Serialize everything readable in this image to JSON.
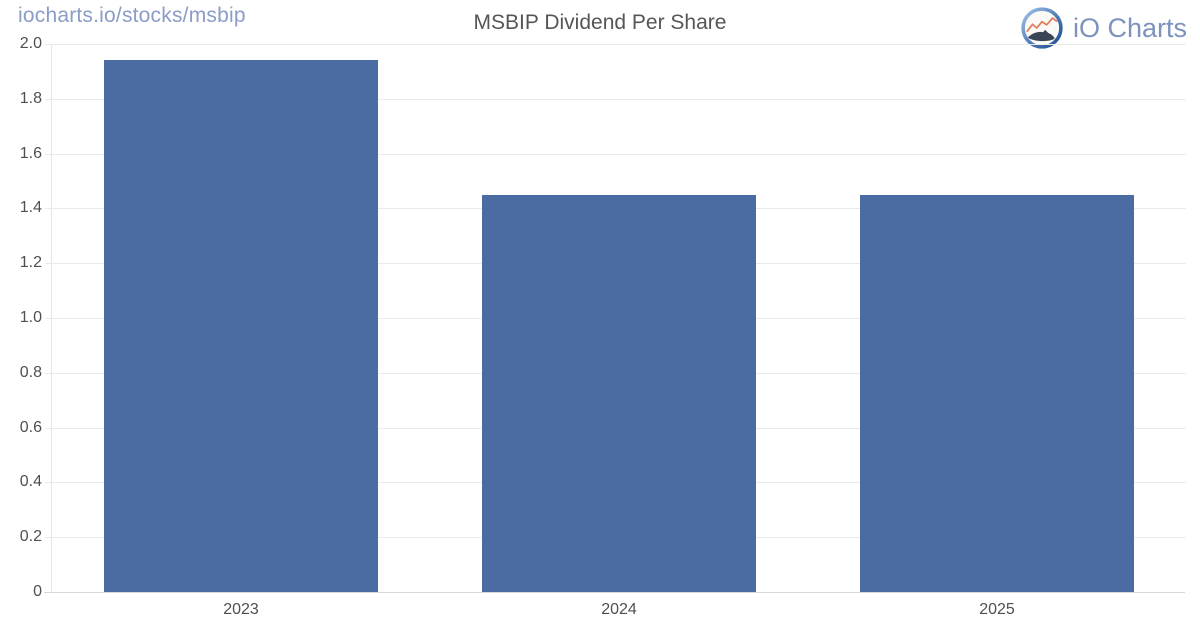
{
  "header": {
    "url": "iocharts.io/stocks/msbip",
    "url_color": "#8b9cc7",
    "brand": "iO Charts",
    "brand_color": "#7d92bd"
  },
  "icons": {
    "logo": "io-charts-logo"
  },
  "chart_data": {
    "type": "bar",
    "title": "MSBIP Dividend Per Share",
    "categories": [
      "2023",
      "2024",
      "2025"
    ],
    "values": [
      1.94,
      1.45,
      1.45
    ],
    "xlabel": "",
    "ylabel": "",
    "ylim": [
      0,
      2.0
    ],
    "yticks": [
      0,
      0.2,
      0.4,
      0.6,
      0.8,
      1.0,
      1.2,
      1.4,
      1.6,
      1.8,
      2.0
    ],
    "ytick_labels": [
      "0",
      "0.2",
      "0.4",
      "0.6",
      "0.8",
      "1.0",
      "1.2",
      "1.4",
      "1.6",
      "1.8",
      "2.0"
    ],
    "grid": true,
    "legend": false,
    "bar_color": "#4b6ca3",
    "bar_width_frac": 0.725,
    "grid_color": "#eaeae7",
    "axis_line_color": "#d7d7da",
    "tick_label_color": "#4f4f4f",
    "title_color": "#565656"
  }
}
